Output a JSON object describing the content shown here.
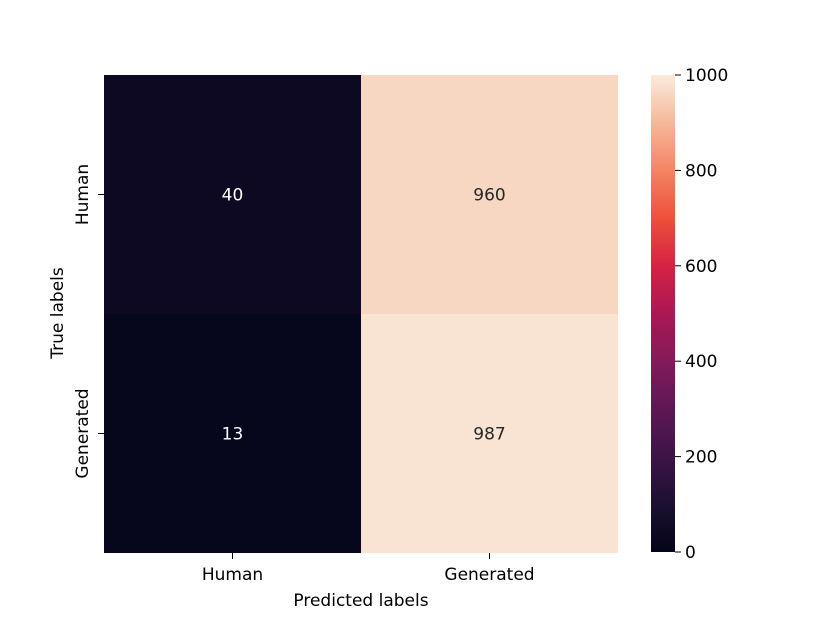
{
  "chart_data": {
    "type": "heatmap",
    "xlabel": "Predicted labels",
    "ylabel": "True labels",
    "x_categories": [
      "Human",
      "Generated"
    ],
    "y_categories": [
      "Human",
      "Generated"
    ],
    "values": [
      [
        40,
        960
      ],
      [
        13,
        987
      ]
    ],
    "colorbar": {
      "min": 0,
      "max": 1000,
      "ticks": [
        0,
        200,
        400,
        600,
        800,
        1000
      ],
      "colormap": "rocket"
    }
  }
}
